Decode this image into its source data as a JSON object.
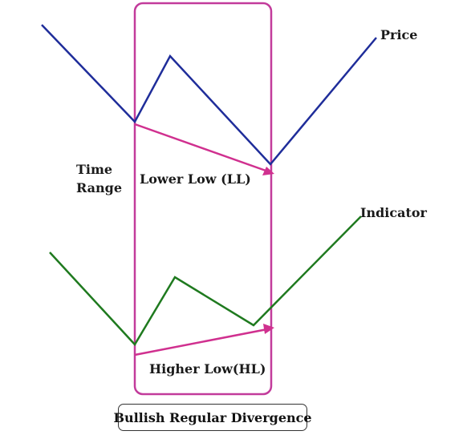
{
  "labels": {
    "price": "Price",
    "indicator": "Indicator",
    "time_range_line1": "Time",
    "time_range_line2": "Range",
    "lower_low": "Lower Low (LL)",
    "higher_low": "Higher Low(HL)",
    "caption": "Bullish Regular Divergence"
  },
  "colors": {
    "price_line": "#1f2d9a",
    "indicator_line": "#1f7a1f",
    "divergence_arrow": "#d0308f",
    "time_range_box": "#c23b9b"
  }
}
